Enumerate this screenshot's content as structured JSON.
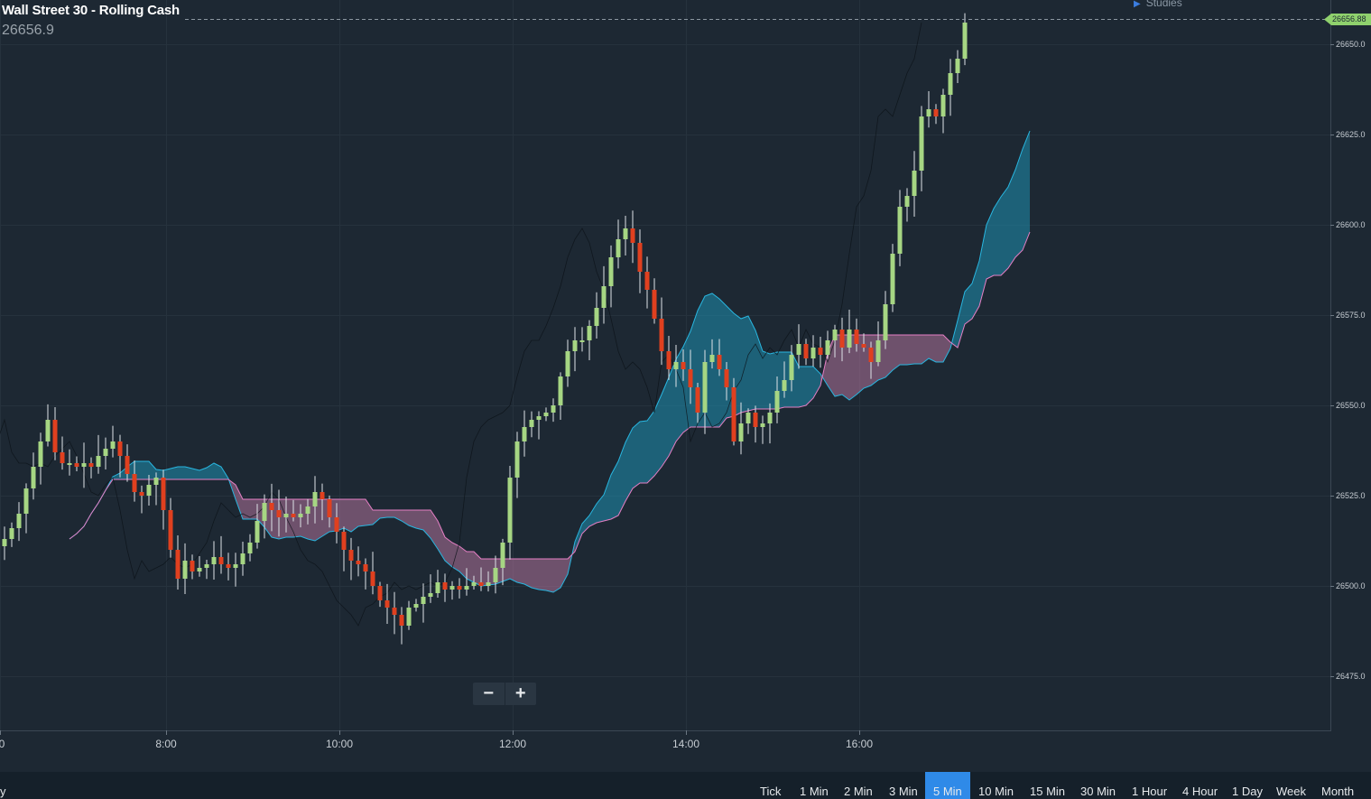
{
  "header": {
    "title": "Wall Street 30 - Rolling Cash",
    "last_price": "26656.9",
    "studies_label": "Studies"
  },
  "price_tag": "26656.88",
  "y_axis_labels": [
    "26650.0",
    "26625.0",
    "26600.0",
    "26575.0",
    "26550.0",
    "26525.0",
    "26500.0",
    "26475.0"
  ],
  "x_axis_labels": [
    "0",
    "8:00",
    "10:00",
    "12:00",
    "14:00",
    "16:00"
  ],
  "zoom": {
    "minus": "−",
    "plus": "+"
  },
  "period_label": "y",
  "timeframes": [
    {
      "label": "Tick",
      "active": false
    },
    {
      "label": "1 Min",
      "active": false
    },
    {
      "label": "2 Min",
      "active": false
    },
    {
      "label": "3 Min",
      "active": false
    },
    {
      "label": "5 Min",
      "active": true
    },
    {
      "label": "10 Min",
      "active": false
    },
    {
      "label": "15 Min",
      "active": false
    },
    {
      "label": "30 Min",
      "active": false
    },
    {
      "label": "1 Hour",
      "active": false
    },
    {
      "label": "4 Hour",
      "active": false
    },
    {
      "label": "1 Day",
      "active": false
    },
    {
      "label": "Week",
      "active": false
    },
    {
      "label": "Month",
      "active": false
    }
  ],
  "colors": {
    "background": "#1d2833",
    "bull_candle": "#a6d683",
    "bear_candle": "#e0401f",
    "cloud_bull": "#1e8fb0",
    "cloud_bear": "#c07aa6",
    "price_tag": "#8fd16d",
    "active_timeframe": "#2f8ae8"
  },
  "chart_data": {
    "type": "candlestick",
    "instrument": "Wall Street 30 - Rolling Cash",
    "interval": "5 Min",
    "ylim": [
      26460,
      26660
    ],
    "last": 26656.88,
    "closes": [
      26513,
      26516,
      26520,
      26527,
      26533,
      26540,
      26546,
      26537,
      26534,
      26534,
      26533,
      26534,
      26533,
      26536,
      26538,
      26540,
      26536,
      26531,
      26526,
      26525,
      26528,
      26530,
      26521,
      26510,
      26502,
      26507,
      26504,
      26505,
      26506,
      26508,
      26506,
      26505,
      26506,
      26509,
      26512,
      26518,
      26523,
      26521,
      26519,
      26520,
      26519,
      26520,
      26522,
      26526,
      26524,
      26519,
      26515,
      26510,
      26507,
      26506,
      26504,
      26500,
      26496,
      26494,
      26492,
      26489,
      26494,
      26495,
      26497,
      26498,
      26501,
      26499,
      26500,
      26499,
      26500,
      26501,
      26500,
      26501,
      26505,
      26512,
      26530,
      26540,
      26544,
      26546,
      26547,
      26548,
      26550,
      26558,
      26565,
      26568,
      26568,
      26572,
      26577,
      26583,
      26591,
      26596,
      26599,
      26595,
      26587,
      26582,
      26574,
      26565,
      26560,
      26562,
      26560,
      26555,
      26548,
      26562,
      26564,
      26560,
      26555,
      26540,
      26545,
      26548,
      26544,
      26545,
      26548,
      26554,
      26557,
      26564,
      26567,
      26563,
      26566,
      26564,
      26568,
      26571,
      26566,
      26571,
      26567,
      26566,
      26562,
      26568,
      26578,
      26592,
      26605,
      26608,
      26615,
      26630,
      26632,
      26630,
      26636,
      26642,
      26646,
      26656
    ]
  }
}
